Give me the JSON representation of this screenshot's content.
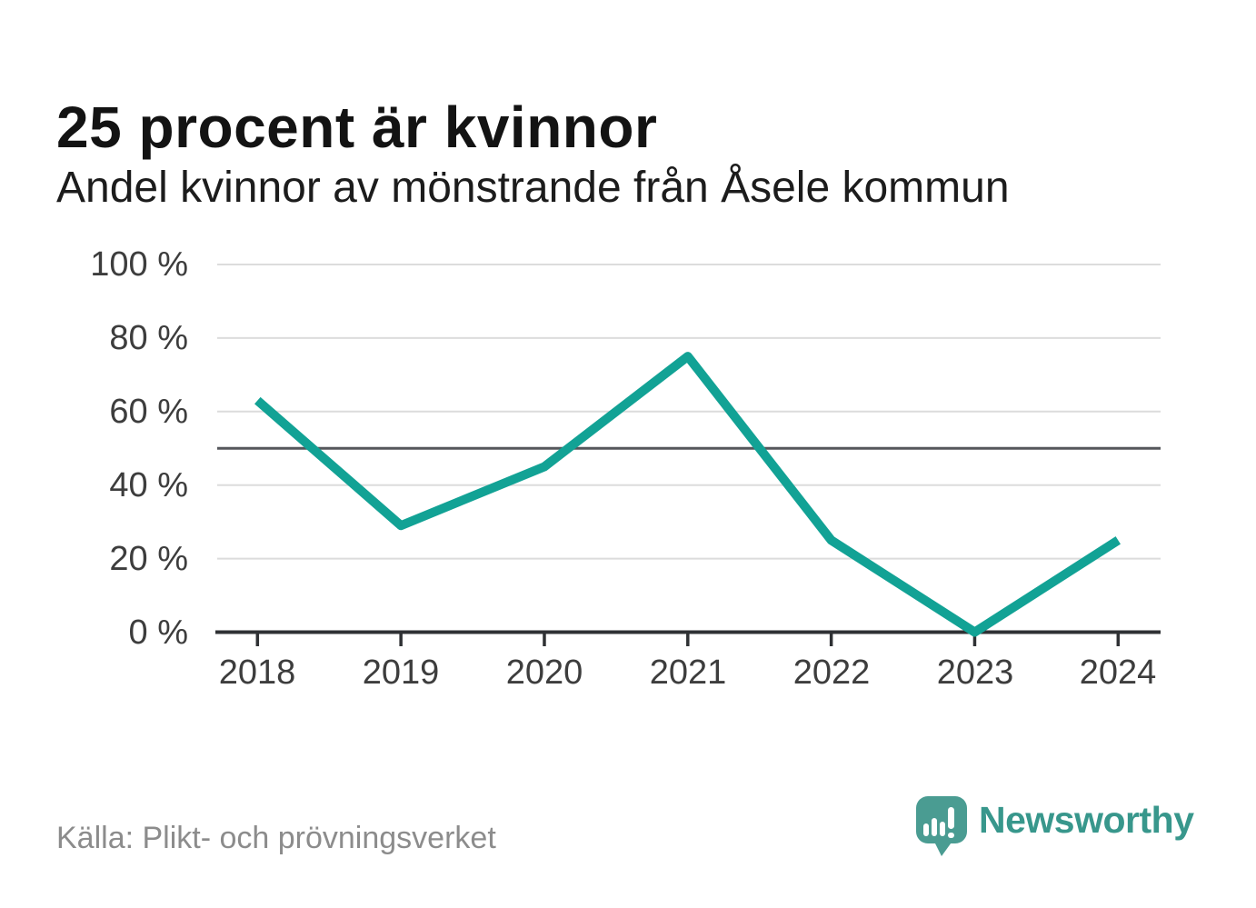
{
  "header": {
    "title": "25 procent är kvinnor",
    "subtitle": "Andel kvinnor av mönstrande från Åsele kommun"
  },
  "chart_data": {
    "type": "line",
    "title": "25 procent är kvinnor",
    "subtitle": "Andel kvinnor av mönstrande från Åsele kommun",
    "categories": [
      "2018",
      "2019",
      "2020",
      "2021",
      "2022",
      "2023",
      "2024"
    ],
    "series": [
      {
        "name": "Andel kvinnor av mönstrande",
        "values": [
          63,
          29,
          45,
          75,
          25,
          0,
          25
        ]
      }
    ],
    "unit": "%",
    "xlabel": "",
    "ylabel": "",
    "ylim": [
      0,
      100
    ],
    "ytick_values": [
      0,
      20,
      40,
      60,
      80,
      100
    ],
    "ytick_labels": [
      "0 %",
      "20 %",
      "40 %",
      "60 %",
      "80 %",
      "100 %"
    ],
    "reference_line": 50,
    "grid": true,
    "legend_position": "none",
    "line_color": "#12a295"
  },
  "footer": {
    "source": "Källa: Plikt- och prövningsverket",
    "brand": "Newsworthy"
  },
  "colors": {
    "accent_teal": "#12a295",
    "logo_teal": "#4a9c92",
    "logo_text_teal": "#38978c",
    "axis": "#2f3134",
    "gridline": "#dcdcdc",
    "reference_line": "#55575b",
    "tick_label": "#3d3d3d",
    "source_gray": "#8c8c8c",
    "background": "#ffffff"
  }
}
